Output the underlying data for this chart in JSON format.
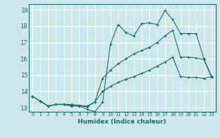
{
  "xlabel": "Humidex (Indice chaleur)",
  "bg_color": "#cde8ea",
  "grid_color": "#ffffff",
  "line_color": "#1a6b6b",
  "xlim": [
    -0.5,
    23.5
  ],
  "ylim": [
    12.75,
    19.35
  ],
  "xticks": [
    0,
    1,
    2,
    3,
    4,
    5,
    6,
    7,
    8,
    9,
    10,
    11,
    12,
    13,
    14,
    15,
    16,
    17,
    18,
    19,
    20,
    21,
    22,
    23
  ],
  "yticks": [
    13,
    14,
    15,
    16,
    17,
    18,
    19
  ],
  "line1_x": [
    0,
    1,
    2,
    3,
    4,
    5,
    6,
    7,
    8,
    9,
    10,
    11,
    12,
    13,
    14,
    15,
    16,
    17,
    18,
    19,
    20,
    21,
    22,
    23
  ],
  "line1_y": [
    13.7,
    13.4,
    13.1,
    13.2,
    13.2,
    13.1,
    13.1,
    12.9,
    12.75,
    13.35,
    16.9,
    18.1,
    17.6,
    17.4,
    18.15,
    18.2,
    18.1,
    18.95,
    18.4,
    17.55,
    17.55,
    17.55,
    16.0,
    14.9
  ],
  "line2_x": [
    0,
    1,
    2,
    3,
    4,
    5,
    6,
    7,
    8,
    9,
    10,
    11,
    12,
    13,
    14,
    15,
    16,
    17,
    18,
    19,
    20,
    21,
    22,
    23
  ],
  "line2_y": [
    13.7,
    13.4,
    13.1,
    13.2,
    13.2,
    13.2,
    13.15,
    13.1,
    13.35,
    14.8,
    15.3,
    15.7,
    16.0,
    16.3,
    16.5,
    16.7,
    17.0,
    17.4,
    17.75,
    16.1,
    16.1,
    16.05,
    15.95,
    14.85
  ],
  "line3_x": [
    0,
    1,
    2,
    3,
    4,
    5,
    6,
    7,
    8,
    9,
    10,
    11,
    12,
    13,
    14,
    15,
    16,
    17,
    18,
    19,
    20,
    21,
    22,
    23
  ],
  "line3_y": [
    13.7,
    13.4,
    13.1,
    13.2,
    13.2,
    13.15,
    13.1,
    13.05,
    13.35,
    14.0,
    14.3,
    14.55,
    14.75,
    14.9,
    15.1,
    15.3,
    15.55,
    15.8,
    16.1,
    14.9,
    14.85,
    14.85,
    14.8,
    14.9
  ]
}
